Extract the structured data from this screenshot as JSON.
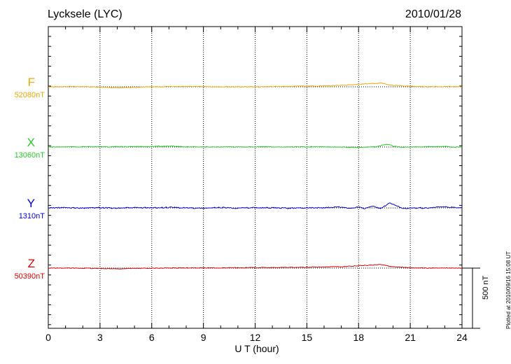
{
  "header": {
    "station": "Lycksele (LYC)",
    "date": "2010/01/28"
  },
  "plotted_note": "Plotted at 2010/09/16 15:08 UT",
  "chart_data": {
    "type": "line",
    "x_label": "U T (hour)",
    "x_range": [
      0,
      24
    ],
    "x_ticks": [
      "0",
      "3",
      "6",
      "9",
      "12",
      "15",
      "18",
      "21",
      "24"
    ],
    "grid": "vertical dotted at 3-hour intervals",
    "scale_bar": "500 nT",
    "series": [
      {
        "label": "F",
        "baseline": "52080nT",
        "color": "#f0a800",
        "x": [
          0,
          2,
          4,
          6,
          8,
          10,
          12,
          14,
          16,
          17,
          18,
          19,
          19.3,
          20,
          21,
          22,
          23,
          24
        ],
        "deviation_nT": [
          0,
          2,
          -8,
          0,
          2,
          0,
          0,
          4,
          8,
          12,
          22,
          30,
          32,
          12,
          4,
          0,
          2,
          0
        ]
      },
      {
        "label": "X",
        "baseline": "13060nT",
        "color": "#22cc22",
        "x": [
          0,
          2,
          4,
          6,
          7,
          8,
          10,
          12,
          14,
          16,
          18,
          19,
          19.7,
          20,
          20.5,
          21,
          23,
          23.5,
          24
        ],
        "deviation_nT": [
          0,
          2,
          2,
          4,
          8,
          2,
          0,
          2,
          0,
          2,
          -4,
          2,
          24,
          8,
          -2,
          0,
          6,
          -2,
          0
        ]
      },
      {
        "label": "Y",
        "baseline": "1310nT",
        "color": "#0000dd",
        "x": [
          0,
          1,
          2,
          3,
          4,
          5,
          6,
          7,
          8,
          9,
          10,
          11,
          12,
          13,
          14,
          15,
          16,
          16.8,
          17.5,
          18,
          18.3,
          18.8,
          19.3,
          19.8,
          20.1,
          20.6,
          21,
          22,
          23,
          23.5,
          24
        ],
        "deviation_nT": [
          0,
          2,
          -2,
          2,
          -2,
          2,
          0,
          4,
          0,
          -4,
          4,
          -2,
          2,
          0,
          -2,
          2,
          0,
          8,
          -4,
          10,
          -8,
          14,
          -6,
          40,
          22,
          -6,
          0,
          0,
          8,
          4,
          0
        ]
      },
      {
        "label": "Z",
        "baseline": "50390nT",
        "color": "#dd0000",
        "x": [
          0,
          2,
          4,
          6,
          8,
          10,
          12,
          14,
          16,
          17,
          18,
          19,
          19.3,
          20,
          21,
          22,
          23,
          24
        ],
        "deviation_nT": [
          0,
          0,
          -6,
          0,
          2,
          2,
          4,
          6,
          10,
          12,
          20,
          28,
          32,
          10,
          4,
          0,
          2,
          0
        ]
      }
    ]
  }
}
